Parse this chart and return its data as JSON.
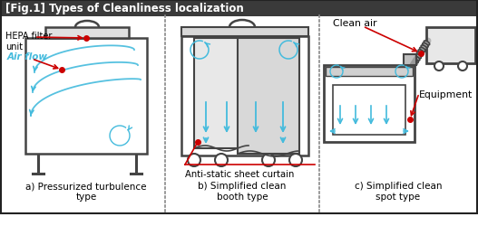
{
  "title": "[Fig.1] Types of Cleanliness localization",
  "title_bg": "#3a3a3a",
  "title_color": "#ffffff",
  "bg_color": "#ffffff",
  "border_color": "#222222",
  "divider_color": "#999999",
  "arrow_color": "#44bbdd",
  "red_color": "#cc0000",
  "dark_gray": "#444444",
  "mid_gray": "#888888",
  "light_gray": "#cccccc",
  "very_light": "#f0f0f0",
  "label_a": "a) Pressurized turbulence\ntype",
  "label_b": "b) Simplified clean\nbooth type",
  "label_c": "c) Simplified clean\nspot type",
  "annot_hepa": "HEPA filter\nunit",
  "annot_airflow": "Air flow",
  "annot_curtain": "Anti-static sheet curtain",
  "annot_clean_air": "Clean air",
  "annot_equipment": "Equipment",
  "fig_width": 5.27,
  "fig_height": 2.5
}
